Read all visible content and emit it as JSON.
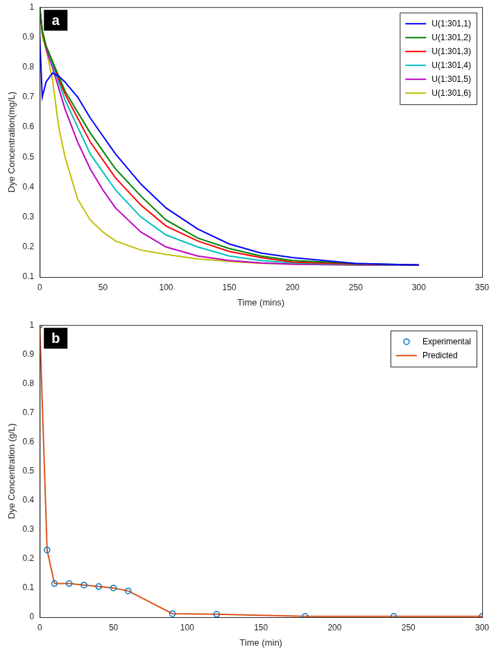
{
  "chart_data": [
    {
      "type": "line",
      "annotations": [
        "a"
      ],
      "x_label": "Time (mins)",
      "y_label": "Dye Concentration(mg/L)",
      "x": [
        0,
        2,
        5,
        10,
        15,
        20,
        30,
        40,
        50,
        60,
        80,
        100,
        125,
        150,
        175,
        200,
        250,
        300
      ],
      "xlim": [
        0,
        350
      ],
      "xticks": [
        0,
        50,
        100,
        150,
        200,
        250,
        300,
        350
      ],
      "ylim": [
        0.1,
        1
      ],
      "yticks": [
        0.1,
        0.2,
        0.3,
        0.4,
        0.5,
        0.6,
        0.7,
        0.8,
        0.9,
        1
      ],
      "grid": false,
      "legend": "upper right",
      "series": [
        {
          "name": "U(1:301,1)",
          "color": "#0000ff",
          "values": [
            0.9,
            0.7,
            0.75,
            0.78,
            0.77,
            0.75,
            0.7,
            0.63,
            0.57,
            0.51,
            0.41,
            0.33,
            0.26,
            0.21,
            0.18,
            0.165,
            0.145,
            0.14
          ]
        },
        {
          "name": "U(1:301,2)",
          "color": "#008000",
          "values": [
            1,
            0.92,
            0.87,
            0.82,
            0.77,
            0.72,
            0.65,
            0.58,
            0.52,
            0.46,
            0.37,
            0.29,
            0.23,
            0.195,
            0.17,
            0.155,
            0.145,
            0.14
          ]
        },
        {
          "name": "U(1:301,3)",
          "color": "#ff0000",
          "values": [
            1,
            0.92,
            0.87,
            0.82,
            0.76,
            0.71,
            0.63,
            0.55,
            0.49,
            0.43,
            0.34,
            0.27,
            0.22,
            0.185,
            0.165,
            0.15,
            0.143,
            0.14
          ]
        },
        {
          "name": "U(1:301,4)",
          "color": "#00bfbf",
          "values": [
            1,
            0.92,
            0.87,
            0.81,
            0.75,
            0.69,
            0.6,
            0.51,
            0.45,
            0.39,
            0.3,
            0.24,
            0.2,
            0.17,
            0.155,
            0.147,
            0.141,
            0.14
          ]
        },
        {
          "name": "U(1:301,5)",
          "color": "#bf00bf",
          "values": [
            1,
            0.92,
            0.86,
            0.8,
            0.73,
            0.66,
            0.55,
            0.46,
            0.39,
            0.33,
            0.25,
            0.2,
            0.17,
            0.155,
            0.147,
            0.143,
            0.14,
            0.14
          ]
        },
        {
          "name": "U(1:301,6)",
          "color": "#bfbf00",
          "values": [
            1,
            0.9,
            0.86,
            0.76,
            0.6,
            0.5,
            0.36,
            0.29,
            0.25,
            0.22,
            0.19,
            0.175,
            0.16,
            0.152,
            0.146,
            0.143,
            0.14,
            0.14
          ]
        }
      ]
    },
    {
      "type": "line",
      "annotations": [
        "b"
      ],
      "x_label": "Time (min)",
      "y_label": "Dye Concentration (g/L)",
      "x": [
        0,
        5,
        10,
        20,
        30,
        40,
        50,
        60,
        90,
        120,
        180,
        240,
        300
      ],
      "xlim": [
        0,
        300
      ],
      "xticks": [
        0,
        50,
        100,
        150,
        200,
        250,
        300
      ],
      "ylim": [
        0,
        1
      ],
      "yticks": [
        0,
        0.1,
        0.2,
        0.3,
        0.4,
        0.5,
        0.6,
        0.7,
        0.8,
        0.9,
        1
      ],
      "grid": false,
      "legend": "upper right",
      "series": [
        {
          "name": "Experimental",
          "type": "scatter",
          "marker": "circle",
          "color": "#0072bd",
          "values": [
            1,
            0.23,
            0.115,
            0.115,
            0.11,
            0.105,
            0.1,
            0.09,
            0.012,
            0.01,
            0.003,
            0.003,
            0.003
          ]
        },
        {
          "name": "Predicted",
          "type": "line",
          "color": "#d95319",
          "values": [
            1,
            0.23,
            0.115,
            0.115,
            0.11,
            0.105,
            0.1,
            0.09,
            0.012,
            0.01,
            0.003,
            0.003,
            0.003
          ]
        }
      ]
    }
  ]
}
